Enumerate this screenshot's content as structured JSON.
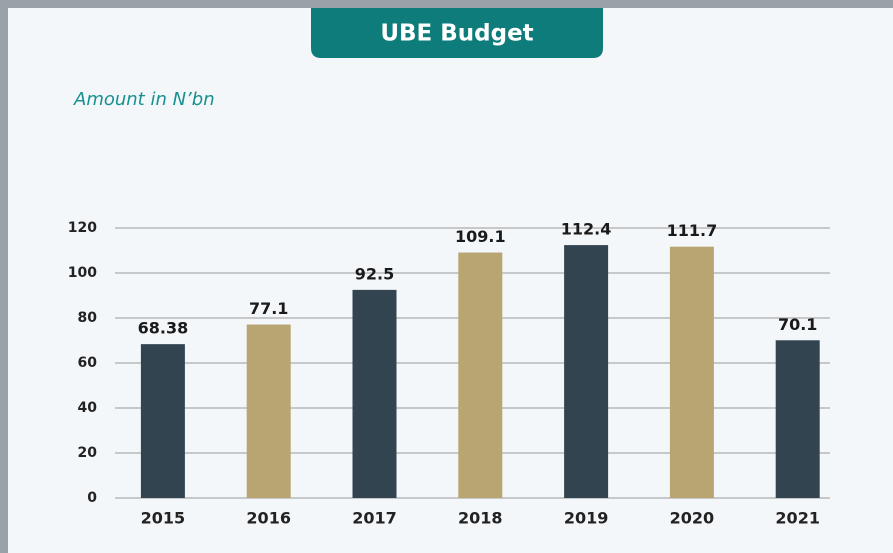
{
  "chart_data": {
    "type": "bar",
    "title": "UBE Budget",
    "subtitle": "Amount in N’bn",
    "categories": [
      "2015",
      "2016",
      "2017",
      "2018",
      "2019",
      "2020",
      "2021"
    ],
    "values": [
      68.38,
      77.1,
      92.5,
      109.1,
      112.4,
      111.7,
      70.1
    ],
    "colors": [
      "#334451",
      "#b9a572",
      "#334451",
      "#b9a572",
      "#334451",
      "#b9a572",
      "#334451"
    ],
    "ylim": [
      0,
      120
    ],
    "yticks": [
      0,
      20,
      40,
      60,
      80,
      100,
      120
    ],
    "grid": true
  }
}
